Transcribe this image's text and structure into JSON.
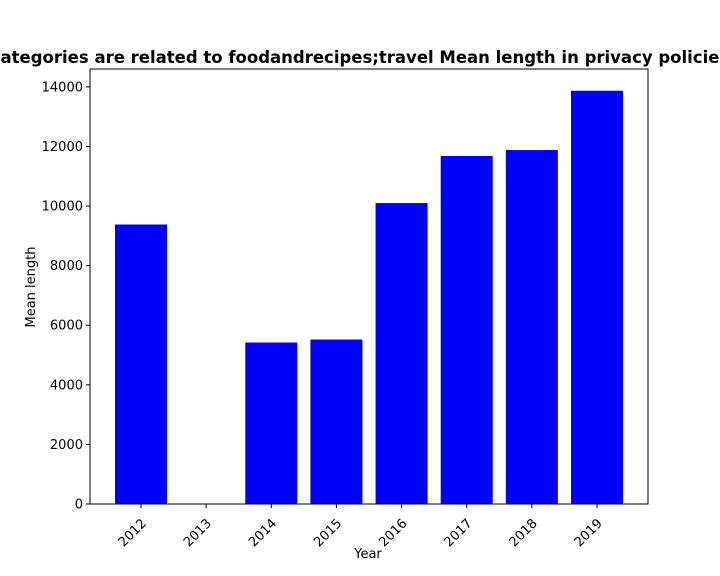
{
  "chart_data": {
    "type": "bar",
    "title": "categories are related to foodandrecipes;travel Mean length in privacy policies",
    "xlabel": "Year",
    "ylabel": "Mean length",
    "categories": [
      "2012",
      "2013",
      "2014",
      "2015",
      "2016",
      "2017",
      "2018",
      "2019"
    ],
    "values": [
      9380,
      0,
      5420,
      5520,
      10100,
      11680,
      11880,
      13870
    ],
    "ylim": [
      0,
      14600
    ],
    "yticks": [
      0,
      2000,
      4000,
      6000,
      8000,
      10000,
      12000,
      14000
    ],
    "bar_color": "#0000ff",
    "grid": false,
    "x_tick_rotation_deg": 45
  }
}
